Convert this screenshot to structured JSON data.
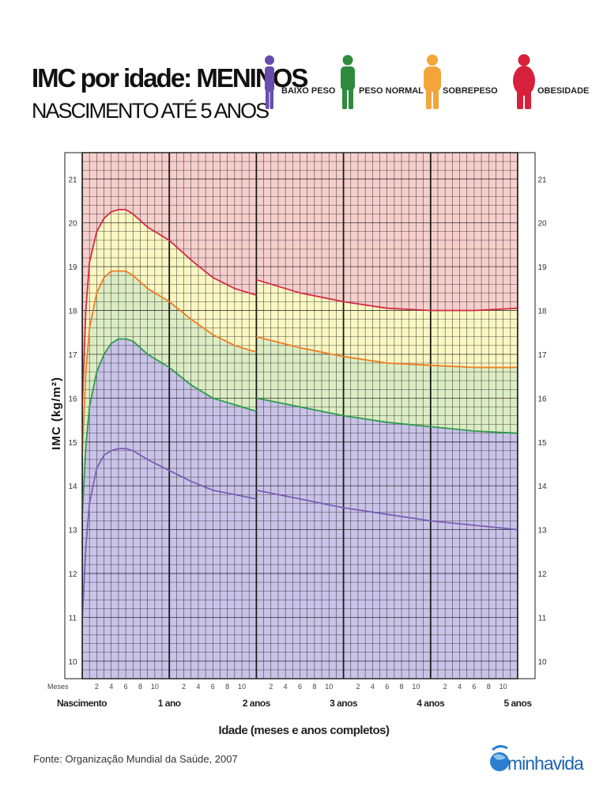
{
  "header": {
    "title": "IMC por idade: MENINOS",
    "subtitle": "NASCIMENTO ATÉ 5 ANOS"
  },
  "legend": [
    {
      "label": "BAIXO PESO",
      "color": "#6a4cae",
      "icon": "person-thin-icon"
    },
    {
      "label": "PESO NORMAL",
      "color": "#2e8b3e",
      "icon": "person-normal-icon"
    },
    {
      "label": "SOBREPESO",
      "color": "#f2a63a",
      "icon": "person-overweight-icon"
    },
    {
      "label": "OBESIDADE",
      "color": "#d6203c",
      "icon": "person-obese-icon"
    }
  ],
  "chart_data": {
    "type": "line",
    "ylabel": "IMC (kg/m²)",
    "xlabel": "Idade (meses e anos completos)",
    "ylim": [
      9.6,
      21.6
    ],
    "xlim": [
      0,
      60
    ],
    "y_ticks": [
      10,
      11,
      12,
      13,
      14,
      15,
      16,
      17,
      18,
      19,
      20,
      21
    ],
    "months_label": "Meses",
    "month_ticks": [
      "2",
      "4",
      "6",
      "8",
      "10"
    ],
    "year_labels": [
      "Nascimento",
      "1 ano",
      "2 anos",
      "3 anos",
      "4 anos",
      "5 anos"
    ],
    "zones": [
      {
        "name": "BAIXO PESO",
        "color": "#c9c3e8"
      },
      {
        "name": "PESO NORMAL",
        "color": "#dcedc4"
      },
      {
        "name": "SOBREPESO",
        "color": "#fbf7c3"
      },
      {
        "name": "OBESIDADE",
        "color": "#f6cfcc"
      }
    ],
    "series": [
      {
        "color": "#7a5db5",
        "points": [
          [
            0,
            10.9
          ],
          [
            0.5,
            12.6
          ],
          [
            1,
            13.6
          ],
          [
            2,
            14.4
          ],
          [
            3,
            14.7
          ],
          [
            4,
            14.8
          ],
          [
            5,
            14.85
          ],
          [
            6,
            14.85
          ],
          [
            7,
            14.8
          ],
          [
            9,
            14.6
          ],
          [
            12,
            14.35
          ],
          [
            15,
            14.1
          ],
          [
            18,
            13.9
          ],
          [
            21,
            13.8
          ],
          [
            24,
            13.7
          ],
          [
            24,
            13.9
          ],
          [
            30,
            13.7
          ],
          [
            36,
            13.5
          ],
          [
            42,
            13.35
          ],
          [
            48,
            13.2
          ],
          [
            54,
            13.1
          ],
          [
            60,
            13.0
          ]
        ]
      },
      {
        "color": "#2e9a4e",
        "points": [
          [
            0,
            13.3
          ],
          [
            0.5,
            14.9
          ],
          [
            1,
            15.8
          ],
          [
            2,
            16.6
          ],
          [
            3,
            17.0
          ],
          [
            4,
            17.25
          ],
          [
            5,
            17.35
          ],
          [
            6,
            17.35
          ],
          [
            7,
            17.3
          ],
          [
            9,
            17.0
          ],
          [
            12,
            16.7
          ],
          [
            15,
            16.3
          ],
          [
            18,
            16.0
          ],
          [
            21,
            15.85
          ],
          [
            24,
            15.7
          ],
          [
            24,
            16.0
          ],
          [
            30,
            15.8
          ],
          [
            36,
            15.6
          ],
          [
            42,
            15.45
          ],
          [
            48,
            15.35
          ],
          [
            54,
            15.25
          ],
          [
            60,
            15.2
          ]
        ]
      },
      {
        "color": "#f07c22",
        "points": [
          [
            0,
            14.7
          ],
          [
            0.5,
            16.6
          ],
          [
            1,
            17.6
          ],
          [
            2,
            18.4
          ],
          [
            3,
            18.75
          ],
          [
            4,
            18.9
          ],
          [
            5,
            18.9
          ],
          [
            6,
            18.9
          ],
          [
            7,
            18.8
          ],
          [
            9,
            18.5
          ],
          [
            12,
            18.2
          ],
          [
            15,
            17.8
          ],
          [
            18,
            17.45
          ],
          [
            21,
            17.2
          ],
          [
            24,
            17.05
          ],
          [
            24,
            17.4
          ],
          [
            30,
            17.15
          ],
          [
            36,
            16.95
          ],
          [
            42,
            16.8
          ],
          [
            48,
            16.75
          ],
          [
            54,
            16.7
          ],
          [
            60,
            16.7
          ]
        ]
      },
      {
        "color": "#d42a46",
        "points": [
          [
            0,
            15.8
          ],
          [
            0.5,
            18.0
          ],
          [
            1,
            19.1
          ],
          [
            2,
            19.8
          ],
          [
            3,
            20.1
          ],
          [
            4,
            20.25
          ],
          [
            5,
            20.3
          ],
          [
            6,
            20.3
          ],
          [
            7,
            20.2
          ],
          [
            9,
            19.9
          ],
          [
            12,
            19.6
          ],
          [
            15,
            19.15
          ],
          [
            18,
            18.75
          ],
          [
            21,
            18.5
          ],
          [
            24,
            18.35
          ],
          [
            24,
            18.7
          ],
          [
            30,
            18.4
          ],
          [
            36,
            18.2
          ],
          [
            42,
            18.05
          ],
          [
            48,
            18.0
          ],
          [
            54,
            18.0
          ],
          [
            60,
            18.05
          ]
        ]
      }
    ]
  },
  "footer": {
    "source": "Fonte: Organização Mundial da Saúde, 2007",
    "brand": "minhavida"
  }
}
